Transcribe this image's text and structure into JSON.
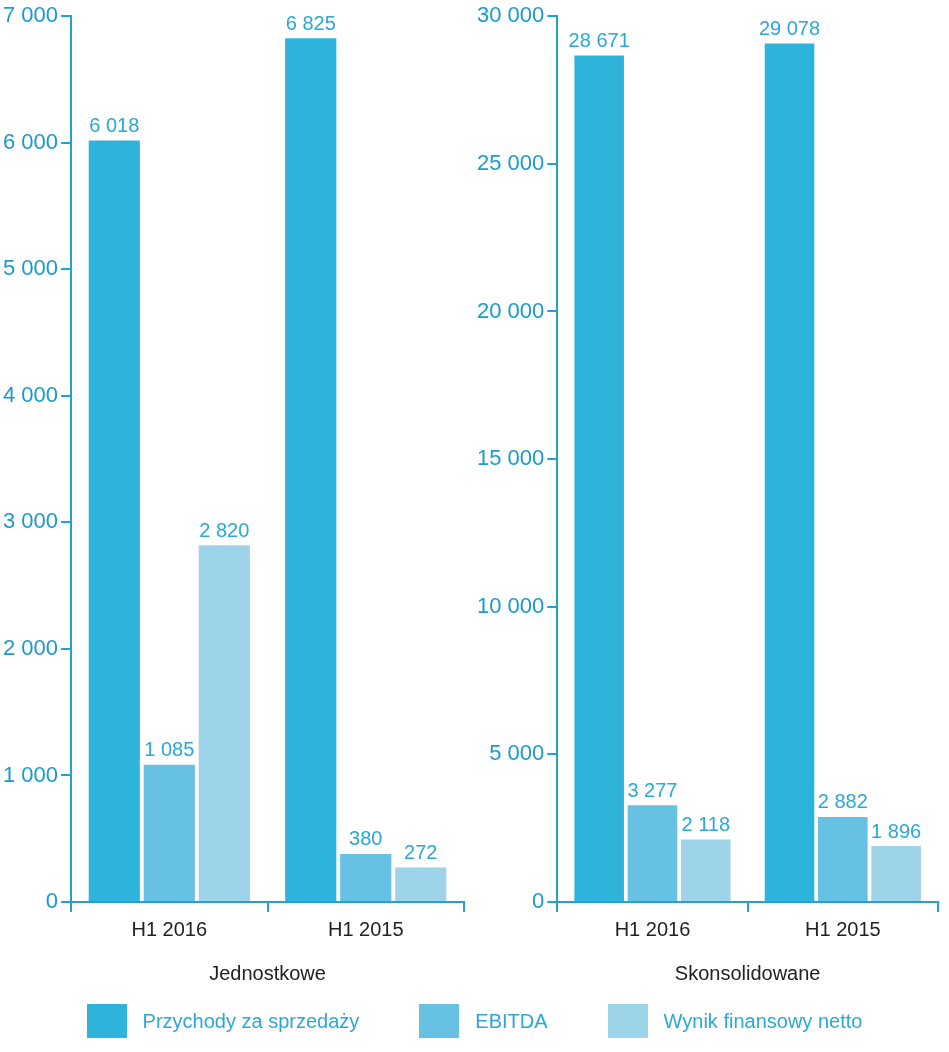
{
  "chart_data": [
    {
      "type": "bar",
      "xlabel": "Jednostkowe",
      "categories": [
        "H1 2016",
        "H1 2015"
      ],
      "legend": "bottom",
      "ylim": [
        0,
        7000
      ],
      "yticks": [
        {
          "value": 0,
          "label": "0"
        },
        {
          "value": 1000,
          "label": "1 000"
        },
        {
          "value": 2000,
          "label": "2 000"
        },
        {
          "value": 3000,
          "label": "3 000"
        },
        {
          "value": 4000,
          "label": "4 000"
        },
        {
          "value": 5000,
          "label": "5 000"
        },
        {
          "value": 6000,
          "label": "6 000"
        },
        {
          "value": 7000,
          "label": "7 000"
        }
      ],
      "grid": false,
      "series": [
        {
          "name": "Przychody za sprzedaży",
          "color": "#2eb4db",
          "values": [
            6018,
            6825
          ],
          "value_labels": [
            "6 018",
            "6 825"
          ]
        },
        {
          "name": "EBITDA",
          "color": "#66c1e3",
          "values": [
            1085,
            380
          ],
          "value_labels": [
            "1 085",
            "380"
          ]
        },
        {
          "name": "Wynik finansowy netto",
          "color": "#9dd4e9",
          "values": [
            2820,
            272
          ],
          "value_labels": [
            "2 820",
            "272"
          ]
        }
      ]
    },
    {
      "type": "bar",
      "xlabel": "Skonsolidowane",
      "categories": [
        "H1 2016",
        "H1 2015"
      ],
      "ylim": [
        0,
        30000
      ],
      "yticks": [
        {
          "value": 0,
          "label": "0"
        },
        {
          "value": 5000,
          "label": "5 000"
        },
        {
          "value": 10000,
          "label": "10 000"
        },
        {
          "value": 15000,
          "label": "15 000"
        },
        {
          "value": 20000,
          "label": "20 000"
        },
        {
          "value": 25000,
          "label": "25 000"
        },
        {
          "value": 30000,
          "label": "30 000"
        }
      ],
      "grid": false,
      "series": [
        {
          "color": "#2eb4db",
          "values": [
            28671,
            29078
          ],
          "value_labels": [
            "28 671",
            "29 078"
          ]
        },
        {
          "color": "#66c1e3",
          "values": [
            3277,
            2882
          ],
          "value_labels": [
            "3 277",
            "2 882"
          ]
        },
        {
          "color": "#9dd4e9",
          "values": [
            2118,
            1896
          ],
          "value_labels": [
            "2 118",
            "1 896"
          ]
        }
      ]
    }
  ]
}
